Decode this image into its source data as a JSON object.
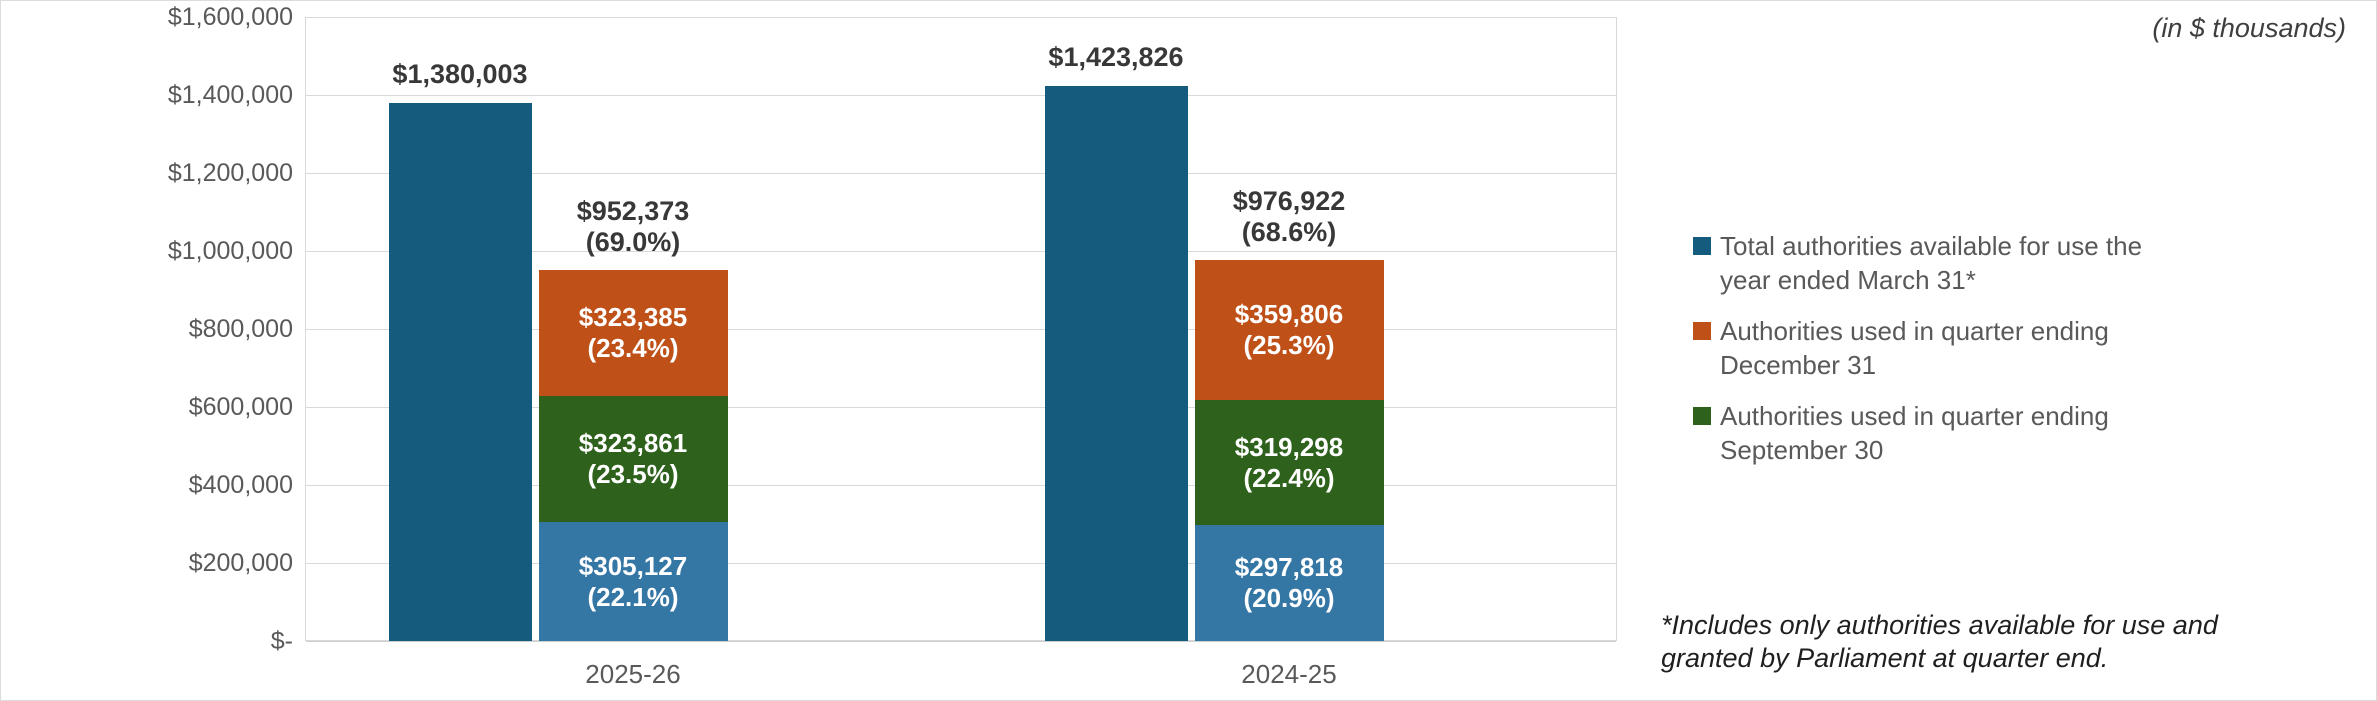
{
  "units_note": "(in $ thousands)",
  "footnote": "*Includes only authorities available for use and\ngranted by Parliament at quarter end.",
  "legend": [
    {
      "label": "Total authorities available for use the\nyear ended March 31*",
      "color": "#155b7e"
    },
    {
      "label": "Authorities used in quarter ending\nDecember 31",
      "color": "#bf5018"
    },
    {
      "label": "Authorities used in quarter ending\nSeptember 30",
      "color": "#2d611c"
    }
  ],
  "colors": {
    "total_bar": "#155b7e",
    "q3_segment": "#bf5018",
    "q2_segment": "#2d611c",
    "q1_segment": "#3476a4",
    "gridline": "#d9d9d9",
    "axis_text": "#595959",
    "outside_label_text": "#383838"
  },
  "chart_data": {
    "type": "bar",
    "title": "",
    "xlabel": "",
    "ylabel": "",
    "ylim": [
      0,
      1600000
    ],
    "y_tick_step": 200000,
    "grid": true,
    "legend_position": "right",
    "categories": [
      "2025-26",
      "2024-25"
    ],
    "y_tick_labels": [
      "$1,600,000",
      "$1,400,000",
      "$1,200,000",
      "$1,000,000",
      "$800,000",
      "$600,000",
      "$400,000",
      "$200,000",
      "$-"
    ],
    "groups": [
      {
        "total": {
          "value": 1380003,
          "label": "$1,380,003",
          "color": "#155b7e"
        },
        "stacked_total": {
          "value": 952373,
          "label": "$952,373",
          "pct": "(69.0%)"
        },
        "segments": [
          {
            "value": 323385,
            "label": "$323,385",
            "pct": "(23.4%)",
            "color": "#bf5018"
          },
          {
            "value": 323861,
            "label": "$323,861",
            "pct": "(23.5%)",
            "color": "#2d611c"
          },
          {
            "value": 305127,
            "label": "$305,127",
            "pct": "(22.1%)",
            "color": "#3476a4"
          }
        ]
      },
      {
        "total": {
          "value": 1423826,
          "label": "$1,423,826",
          "color": "#155b7e"
        },
        "stacked_total": {
          "value": 976922,
          "label": "$976,922",
          "pct": "(68.6%)"
        },
        "segments": [
          {
            "value": 359806,
            "label": "$359,806",
            "pct": "(25.3%)",
            "color": "#bf5018"
          },
          {
            "value": 319298,
            "label": "$319,298",
            "pct": "(22.4%)",
            "color": "#2d611c"
          },
          {
            "value": 297818,
            "label": "$297,818",
            "pct": "(20.9%)",
            "color": "#3476a4"
          }
        ]
      }
    ]
  }
}
